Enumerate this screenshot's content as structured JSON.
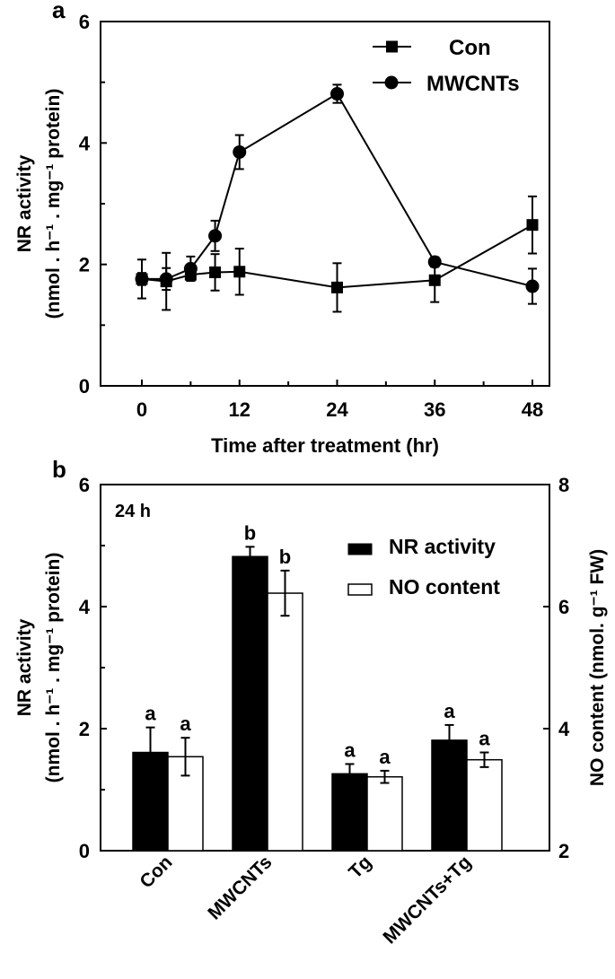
{
  "chart_data": [
    {
      "panel_label": "a",
      "type": "line",
      "xlabel": "Time after treatment (hr)",
      "ylabel_line1": "NR activity",
      "ylabel_line2": "(nmol . h⁻¹ . mg⁻¹ protein)",
      "xlim": [
        -4.5,
        50
      ],
      "ylim": [
        0,
        6
      ],
      "xticks": [
        0,
        12,
        24,
        36,
        48
      ],
      "yticks": [
        0,
        2,
        4,
        6
      ],
      "legend_position": "top-right",
      "x": [
        0,
        3,
        6,
        9,
        12,
        24,
        36,
        48
      ],
      "series": [
        {
          "name": "Con",
          "marker": "square",
          "values": [
            1.76,
            1.72,
            1.83,
            1.87,
            1.88,
            1.62,
            1.74,
            2.65
          ],
          "errors": [
            0.32,
            0.47,
            0.1,
            0.3,
            0.38,
            0.4,
            0.36,
            0.47
          ]
        },
        {
          "name": "MWCNTs",
          "marker": "circle",
          "values": [
            1.76,
            1.76,
            1.93,
            2.47,
            3.85,
            4.81,
            2.04,
            1.64
          ],
          "errors": [
            0.1,
            0.18,
            0.2,
            0.25,
            0.28,
            0.15,
            0.08,
            0.29
          ]
        }
      ]
    },
    {
      "panel_label": "b",
      "type": "bar",
      "annotation": "24 h",
      "categories": [
        "Con",
        "MWCNTs",
        "Tg",
        "MWCNTs+Tg"
      ],
      "ylabel_line1": "NR activity",
      "ylabel_line2": "(nmol . h⁻¹ . mg⁻¹ protein)",
      "y2label": "NO content (nmol. g⁻¹ FW)",
      "ylim": [
        0,
        6
      ],
      "y2lim": [
        2,
        8
      ],
      "yticks": [
        0,
        2,
        4,
        6
      ],
      "y2ticks": [
        2,
        4,
        6,
        8
      ],
      "legend_position": "top-right",
      "series": [
        {
          "name": "NR activity",
          "axis": "left",
          "color": "#000000",
          "values": [
            1.61,
            4.82,
            1.26,
            1.81
          ],
          "errors": [
            0.41,
            0.16,
            0.16,
            0.25
          ],
          "letters": [
            "a",
            "b",
            "a",
            "a"
          ]
        },
        {
          "name": "NO content",
          "axis": "right",
          "color": "#ffffff",
          "values": [
            3.54,
            6.22,
            3.21,
            3.49
          ],
          "errors": [
            0.31,
            0.37,
            0.1,
            0.12
          ],
          "letters": [
            "a",
            "b",
            "a",
            "a"
          ]
        }
      ]
    }
  ]
}
